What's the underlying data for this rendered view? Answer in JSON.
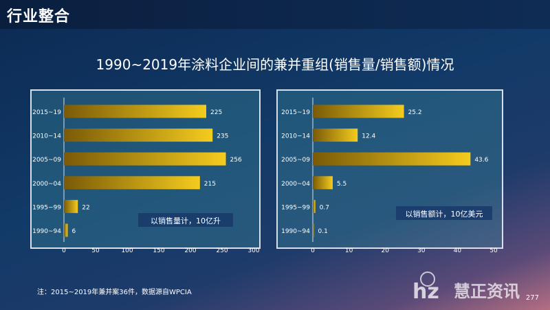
{
  "page": {
    "title": "行业整合",
    "main_title": "1990~2019年涂料企业间的兼并重组(销售量/销售额)情况",
    "note": "注：2015~2019年兼并案36件，数据源自WPCIA",
    "page_number": "277",
    "logo_text": "慧正资讯"
  },
  "colors": {
    "bar_dark": "#7a5a08",
    "bar_light": "#f4cc1e",
    "text": "#ffffff",
    "panel_border": "#d9e0ea"
  },
  "chart_data": [
    {
      "type": "bar",
      "orientation": "horizontal",
      "categories": [
        "2015~19",
        "2010~14",
        "2005~09",
        "2000~04",
        "1995~99",
        "1990~94"
      ],
      "values": [
        225,
        235,
        256,
        215,
        22,
        6
      ],
      "xlim": [
        0,
        300
      ],
      "xticks": [
        0,
        50,
        100,
        150,
        200,
        250,
        300
      ],
      "annotation": "以销售量计，10亿升",
      "grid": false,
      "data_labels": true
    },
    {
      "type": "bar",
      "orientation": "horizontal",
      "categories": [
        "2015~19",
        "2010~14",
        "2005~09",
        "2000~04",
        "1995~99",
        "1990~94"
      ],
      "values": [
        25.2,
        12.4,
        43.6,
        5.5,
        0.7,
        0.1
      ],
      "xlim": [
        0,
        50
      ],
      "xticks": [
        0,
        10,
        20,
        30,
        40,
        50
      ],
      "annotation": "以销售额计，10亿美元",
      "grid": false,
      "data_labels": true
    }
  ]
}
